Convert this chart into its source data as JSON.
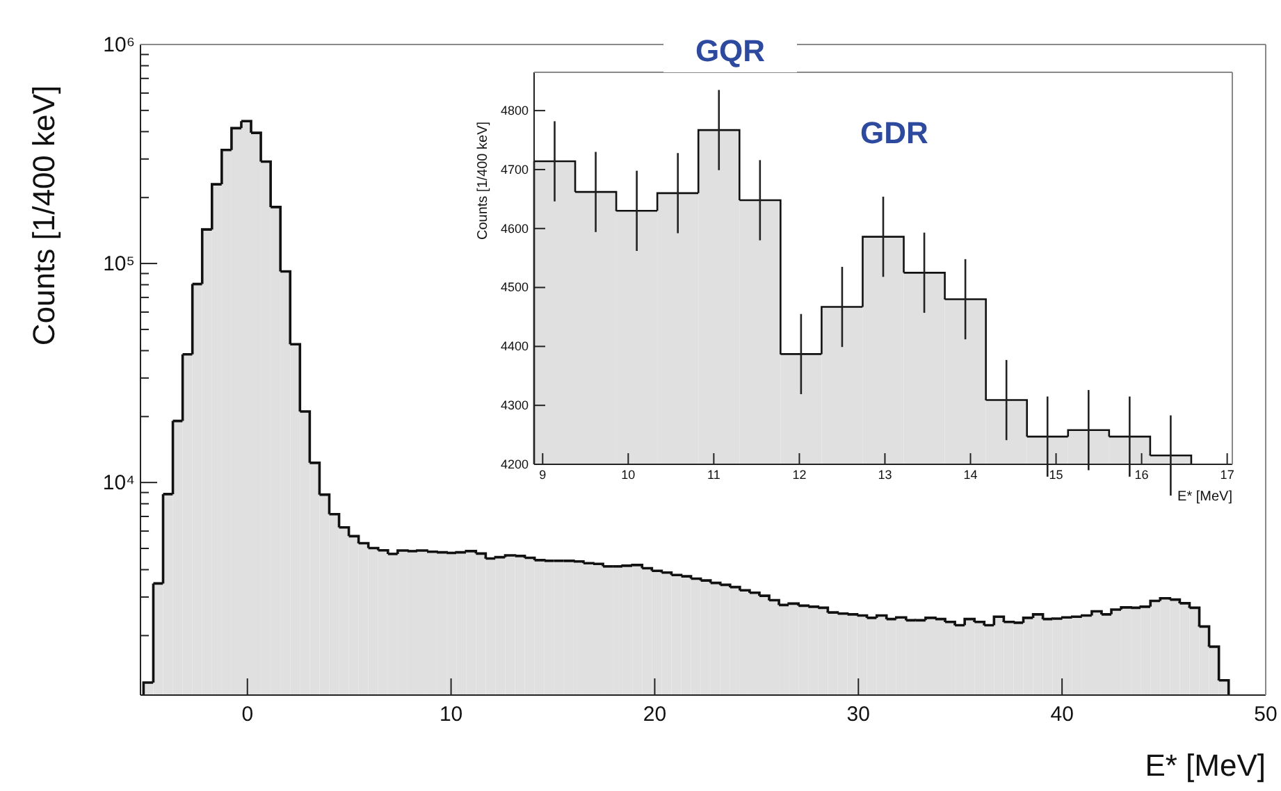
{
  "chart_data": [
    {
      "type": "histogram",
      "xlabel": "E* [MeV]",
      "ylabel": "Counts [1/400 keV]",
      "log": true,
      "color": "#e0e0e0",
      "xlim": [
        -5.25,
        50
      ],
      "xticks": [
        0,
        10,
        20,
        30,
        40,
        50
      ],
      "ylim": [
        1070,
        1000000
      ],
      "yticks": [
        {
          "value": 2000,
          "label": null
        },
        {
          "value": 3000,
          "label": null
        },
        {
          "value": 4000,
          "label": null
        },
        {
          "value": 5000,
          "label": null
        },
        {
          "value": 6000,
          "label": null
        },
        {
          "value": 7000,
          "label": null
        },
        {
          "value": 8000,
          "label": null
        },
        {
          "value": 9000,
          "label": null
        },
        {
          "value": 10000,
          "label": "10⁴"
        },
        {
          "value": 20000,
          "label": null
        },
        {
          "value": 30000,
          "label": null
        },
        {
          "value": 40000,
          "label": null
        },
        {
          "value": 50000,
          "label": null
        },
        {
          "value": 60000,
          "label": null
        },
        {
          "value": 70000,
          "label": null
        },
        {
          "value": 80000,
          "label": null
        },
        {
          "value": 90000,
          "label": null
        },
        {
          "value": 100000,
          "label": "10⁵"
        },
        {
          "value": 200000,
          "label": null
        },
        {
          "value": 300000,
          "label": null
        },
        {
          "value": 400000,
          "label": null
        },
        {
          "value": 500000,
          "label": null
        },
        {
          "value": 600000,
          "label": null
        },
        {
          "value": 700000,
          "label": null
        },
        {
          "value": 800000,
          "label": null
        },
        {
          "value": 900000,
          "label": null
        },
        {
          "value": 1000000,
          "label": "10⁶"
        }
      ],
      "bins": [
        -5.1,
        -4.62,
        -4.14,
        -3.66,
        -3.18,
        -2.7,
        -2.22,
        -1.74,
        -1.26,
        -0.78,
        -0.3,
        0.18,
        0.66,
        1.14,
        1.62,
        2.1,
        2.58,
        3.06,
        3.54,
        4.02,
        4.5,
        4.98,
        5.46,
        5.94,
        6.42,
        6.9,
        7.38,
        7.86,
        8.34,
        8.82,
        9.3,
        9.78,
        10.26,
        10.74,
        11.22,
        11.7,
        12.18,
        12.66,
        13.14,
        13.62,
        14.1,
        14.58,
        15.06,
        15.54,
        16.02,
        16.5,
        16.98,
        17.46,
        17.94,
        18.42,
        18.9,
        19.38,
        19.86,
        20.34,
        20.82,
        21.3,
        21.78,
        22.26,
        22.74,
        23.22,
        23.7,
        24.18,
        24.66,
        25.14,
        25.62,
        26.1,
        26.58,
        27.06,
        27.54,
        28.02,
        28.5,
        28.98,
        29.46,
        29.94,
        30.42,
        30.9,
        31.38,
        31.86,
        32.34,
        32.82,
        33.3,
        33.78,
        34.26,
        34.74,
        35.22,
        35.7,
        36.18,
        36.66,
        37.14,
        37.62,
        38.1,
        38.58,
        39.06,
        39.54,
        40.02,
        40.5,
        40.98,
        41.46,
        41.94,
        42.42,
        42.9,
        43.38,
        43.86,
        44.34,
        44.82,
        45.3,
        45.78,
        46.26,
        46.74,
        47.22,
        47.7,
        48.18
      ],
      "values": [
        1220,
        3460,
        8850,
        19100,
        38500,
        80600,
        143000,
        230000,
        330000,
        415000,
        447000,
        395000,
        292000,
        181000,
        92000,
        42800,
        21100,
        12300,
        8800,
        7170,
        6240,
        5690,
        5280,
        5020,
        4900,
        4720,
        4890,
        4860,
        4890,
        4830,
        4800,
        4770,
        4800,
        4860,
        4740,
        4500,
        4560,
        4650,
        4620,
        4530,
        4420,
        4390,
        4390,
        4390,
        4360,
        4280,
        4250,
        4140,
        4140,
        4170,
        4200,
        4060,
        3950,
        3880,
        3780,
        3730,
        3640,
        3570,
        3480,
        3410,
        3330,
        3220,
        3140,
        3040,
        2900,
        2760,
        2800,
        2740,
        2710,
        2680,
        2550,
        2520,
        2500,
        2470,
        2410,
        2470,
        2380,
        2420,
        2350,
        2350,
        2410,
        2380,
        2310,
        2230,
        2380,
        2310,
        2230,
        2440,
        2310,
        2290,
        2410,
        2500,
        2380,
        2390,
        2420,
        2440,
        2470,
        2580,
        2500,
        2630,
        2690,
        2680,
        2710,
        2880,
        2960,
        2920,
        2810,
        2680,
        2200,
        1780,
        1250
      ]
    },
    {
      "type": "histogram",
      "xlabel": "E* [MeV]",
      "ylabel": "Counts [1/400 keV]",
      "color": "#e0e0e0",
      "annotations": [
        "GQR",
        "GDR"
      ],
      "xlim": [
        8.9,
        17.06
      ],
      "xticks": [
        9,
        10,
        11,
        12,
        13,
        14,
        15,
        16,
        17
      ],
      "ylim": [
        4200,
        4865
      ],
      "yticks": [
        4200,
        4300,
        4400,
        4500,
        4600,
        4700,
        4800
      ],
      "bins": [
        8.9,
        9.38,
        9.86,
        10.34,
        10.82,
        11.3,
        11.78,
        12.26,
        12.74,
        13.22,
        13.7,
        14.18,
        14.66,
        15.14,
        15.62,
        16.1,
        16.58
      ],
      "values": [
        4714,
        4662,
        4630,
        4660,
        4767,
        4648,
        4387,
        4467,
        4586,
        4525,
        4480,
        4309,
        4247,
        4258,
        4247,
        4215
      ],
      "errors": [
        68,
        68,
        68,
        68,
        68,
        68,
        68,
        68,
        68,
        68,
        68,
        68,
        68,
        68,
        68,
        68
      ]
    }
  ]
}
